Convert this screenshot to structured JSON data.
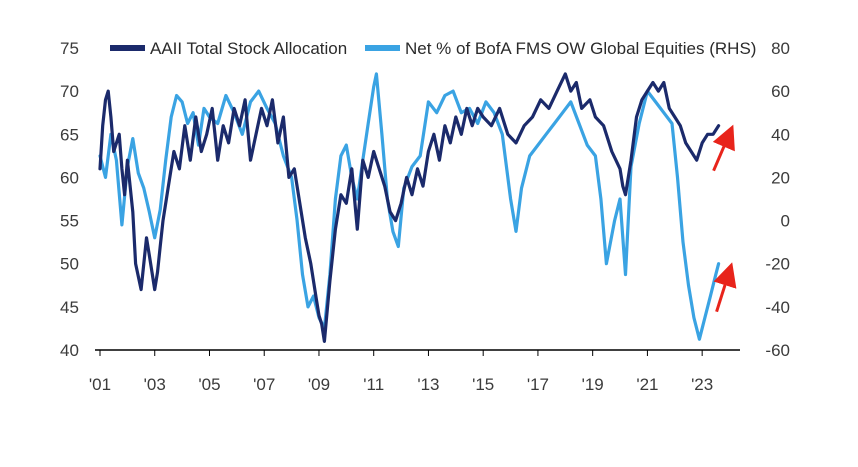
{
  "chart_data": {
    "type": "line",
    "title": "",
    "xlabel": "",
    "ylabel": "",
    "y2label": "",
    "x_tick_labels": [
      "'01",
      "'03",
      "'05",
      "'07",
      "'09",
      "'11",
      "'13",
      "'15",
      "'17",
      "'19",
      "'21",
      "'23"
    ],
    "x_range": [
      2001.0,
      2024.2
    ],
    "ylim_left": [
      40,
      75
    ],
    "yticks_left": [
      75,
      70,
      65,
      60,
      55,
      50,
      45,
      40
    ],
    "ylim_right": [
      -60,
      80
    ],
    "yticks_right": [
      80,
      60,
      40,
      20,
      0,
      -20,
      -40,
      -60
    ],
    "grid": false,
    "legend_position": "top",
    "series": [
      {
        "name": "AAII Total Stock Allocation",
        "axis": "left",
        "color": "#1b2a6b",
        "x": [
          2001.0,
          2001.1,
          2001.2,
          2001.3,
          2001.4,
          2001.5,
          2001.7,
          2001.8,
          2001.9,
          2002.0,
          2002.2,
          2002.3,
          2002.5,
          2002.7,
          2002.8,
          2002.9,
          2003.0,
          2003.1,
          2003.2,
          2003.3,
          2003.5,
          2003.7,
          2003.9,
          2004.1,
          2004.3,
          2004.5,
          2004.7,
          2004.9,
          2005.1,
          2005.3,
          2005.5,
          2005.7,
          2005.9,
          2006.1,
          2006.3,
          2006.5,
          2006.7,
          2006.9,
          2007.1,
          2007.3,
          2007.5,
          2007.7,
          2007.9,
          2008.1,
          2008.3,
          2008.5,
          2008.7,
          2008.9,
          2009.0,
          2009.1,
          2009.2,
          2009.4,
          2009.6,
          2009.8,
          2010.0,
          2010.2,
          2010.4,
          2010.6,
          2010.8,
          2011.0,
          2011.2,
          2011.4,
          2011.6,
          2011.8,
          2012.0,
          2012.2,
          2012.4,
          2012.6,
          2012.8,
          2013.0,
          2013.2,
          2013.4,
          2013.6,
          2013.8,
          2014.0,
          2014.2,
          2014.4,
          2014.6,
          2014.8,
          2015.0,
          2015.3,
          2015.6,
          2015.9,
          2016.2,
          2016.5,
          2016.8,
          2017.1,
          2017.4,
          2017.7,
          2018.0,
          2018.2,
          2018.4,
          2018.6,
          2018.9,
          2019.1,
          2019.4,
          2019.7,
          2020.0,
          2020.1,
          2020.2,
          2020.4,
          2020.6,
          2020.8,
          2021.0,
          2021.2,
          2021.4,
          2021.6,
          2021.8,
          2022.0,
          2022.2,
          2022.4,
          2022.6,
          2022.8,
          2023.0,
          2023.2,
          2023.4,
          2023.6
        ],
        "values": [
          61,
          66,
          69,
          70,
          67,
          63,
          65,
          61,
          58,
          62,
          56,
          50,
          47,
          53,
          51,
          49,
          47,
          49,
          52,
          55,
          59,
          63,
          61,
          66,
          62,
          67,
          63,
          65,
          68,
          62,
          66,
          64,
          68,
          66,
          69,
          62,
          65,
          68,
          66,
          69,
          64,
          67,
          60,
          61,
          57,
          53,
          50,
          46,
          44,
          43,
          41,
          48,
          54,
          58,
          57,
          61,
          54,
          62,
          60,
          63,
          61,
          59,
          56,
          55,
          57,
          60,
          58,
          61,
          59,
          63,
          65,
          62,
          66,
          64,
          67,
          65,
          68,
          66,
          68,
          67,
          66,
          68,
          65,
          64,
          66,
          67,
          69,
          68,
          70,
          72,
          70,
          71,
          68,
          69,
          67,
          66,
          63,
          61,
          59,
          58,
          62,
          67,
          69,
          70,
          71,
          70,
          71,
          68,
          67,
          66,
          64,
          63,
          62,
          64,
          65,
          65,
          66
        ]
      },
      {
        "name": "Net % of BofA FMS OW Global Equities (RHS)",
        "axis": "right",
        "color": "#3aa3e3",
        "x": [
          2001.0,
          2001.2,
          2001.4,
          2001.6,
          2001.8,
          2002.0,
          2002.2,
          2002.4,
          2002.6,
          2002.8,
          2003.0,
          2003.2,
          2003.4,
          2003.6,
          2003.8,
          2004.0,
          2004.2,
          2004.4,
          2004.6,
          2004.8,
          2005.0,
          2005.3,
          2005.6,
          2005.9,
          2006.2,
          2006.5,
          2006.8,
          2007.1,
          2007.4,
          2007.7,
          2008.0,
          2008.2,
          2008.4,
          2008.6,
          2008.8,
          2009.0,
          2009.2,
          2009.4,
          2009.6,
          2009.8,
          2010.0,
          2010.2,
          2010.4,
          2010.6,
          2010.8,
          2011.0,
          2011.1,
          2011.3,
          2011.5,
          2011.7,
          2011.9,
          2012.1,
          2012.4,
          2012.7,
          2013.0,
          2013.3,
          2013.6,
          2013.9,
          2014.2,
          2014.5,
          2014.8,
          2015.1,
          2015.4,
          2015.7,
          2016.0,
          2016.2,
          2016.4,
          2016.7,
          2017.0,
          2017.3,
          2017.6,
          2017.9,
          2018.2,
          2018.5,
          2018.8,
          2019.1,
          2019.3,
          2019.5,
          2019.8,
          2020.0,
          2020.2,
          2020.4,
          2020.7,
          2021.0,
          2021.3,
          2021.6,
          2021.9,
          2022.1,
          2022.3,
          2022.5,
          2022.7,
          2022.9,
          2023.1,
          2023.3,
          2023.5,
          2023.6
        ],
        "values": [
          30,
          20,
          40,
          28,
          -2,
          25,
          38,
          22,
          15,
          4,
          -8,
          5,
          28,
          48,
          58,
          55,
          45,
          50,
          35,
          52,
          48,
          45,
          58,
          50,
          40,
          55,
          60,
          52,
          45,
          30,
          20,
          0,
          -25,
          -40,
          -35,
          -45,
          -50,
          -25,
          10,
          30,
          35,
          20,
          10,
          28,
          45,
          62,
          68,
          40,
          10,
          -5,
          -12,
          15,
          25,
          30,
          55,
          50,
          58,
          60,
          50,
          52,
          45,
          55,
          50,
          40,
          10,
          -5,
          15,
          30,
          35,
          40,
          45,
          50,
          55,
          45,
          35,
          30,
          10,
          -20,
          0,
          10,
          -25,
          25,
          45,
          60,
          55,
          50,
          45,
          20,
          -10,
          -30,
          -45,
          -55,
          -45,
          -35,
          -25,
          -20
        ]
      }
    ]
  },
  "annotations": [
    {
      "type": "arrow",
      "color": "#e8241b",
      "direction": "up-right",
      "target_series": "AAII Total Stock Allocation"
    },
    {
      "type": "arrow",
      "color": "#e8241b",
      "direction": "up-right",
      "target_series": "Net % of BofA FMS OW Global Equities (RHS)"
    }
  ]
}
